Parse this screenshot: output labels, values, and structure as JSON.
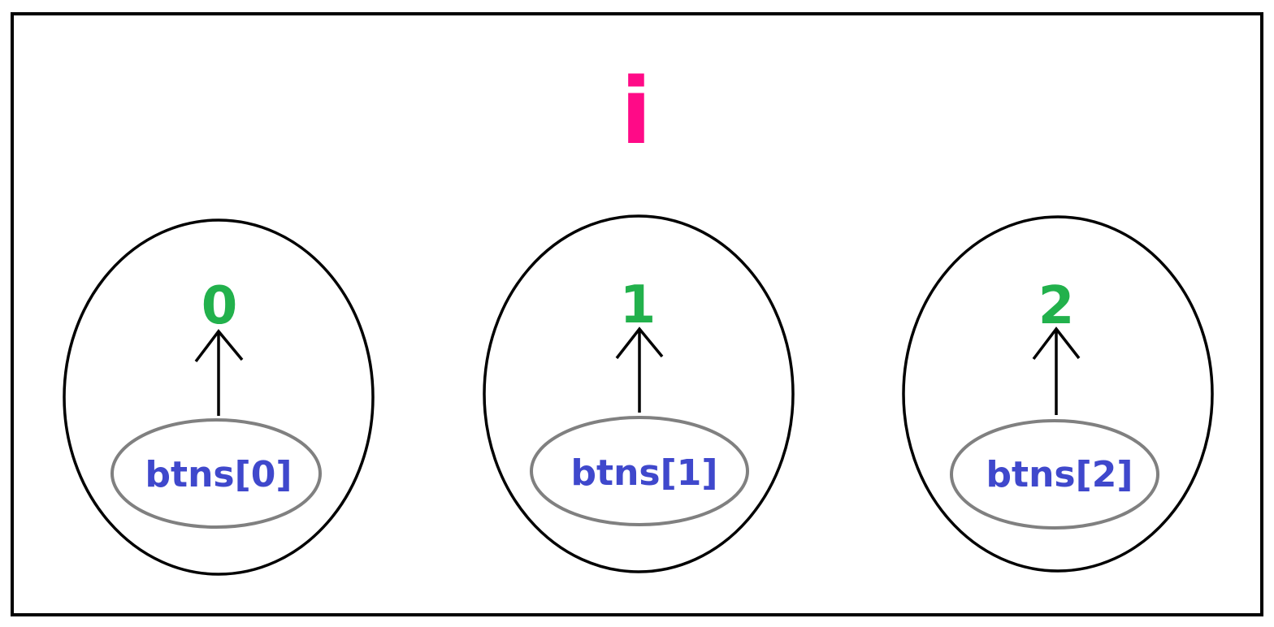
{
  "title": "i",
  "colors": {
    "title": "#ff0a87",
    "value": "#22b14c",
    "button": "#3f48cc",
    "outer_outline": "#000000",
    "inner_outline": "#808080"
  },
  "groups": [
    {
      "value": "0",
      "button": "btns[0]"
    },
    {
      "value": "1",
      "button": "btns[1]"
    },
    {
      "value": "2",
      "button": "btns[2]"
    }
  ]
}
